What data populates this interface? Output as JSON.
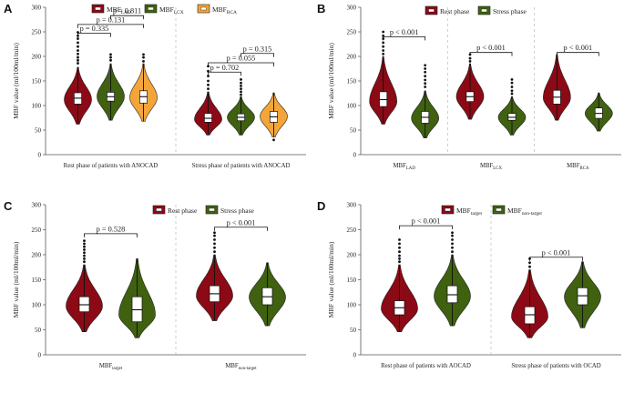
{
  "colors": {
    "red": "#8B0A15",
    "green": "#3F6110",
    "orange": "#F3A53A",
    "divider": "#bbbbbb"
  },
  "chart_data": [
    {
      "panel": "A",
      "type": "violin",
      "ylabel": "MBF value (ml/100ml/min)",
      "ylim": [
        0,
        300
      ],
      "yticks": [
        "0",
        "50",
        "100",
        "150",
        "200",
        "250",
        "300"
      ],
      "legend": [
        {
          "key": "lad",
          "base": "MBF",
          "sub": "LAD",
          "color": "red"
        },
        {
          "key": "lcx",
          "base": "MBF",
          "sub": "LCX",
          "color": "green"
        },
        {
          "key": "rca",
          "base": "MBF",
          "sub": "RCA",
          "color": "orange"
        }
      ],
      "groups": [
        {
          "label": "Rest phase of patients with ANOCAD",
          "violins": [
            {
              "series": "lad",
              "color": "red",
              "min": 62,
              "max": 178,
              "q1": 103,
              "median": 115,
              "q3": 126,
              "peak": 112,
              "outliers": [
                186,
                192,
                198,
                205,
                212,
                220,
                228,
                236,
                242,
                249
              ]
            },
            {
              "series": "lcx",
              "color": "green",
              "min": 70,
              "max": 185,
              "q1": 109,
              "median": 118,
              "q3": 127,
              "peak": 118,
              "outliers": [
                192,
                198,
                204
              ]
            },
            {
              "series": "rca",
              "color": "orange",
              "min": 68,
              "max": 185,
              "q1": 105,
              "median": 118,
              "q3": 130,
              "peak": 116,
              "outliers": [
                190,
                198,
                204
              ]
            }
          ]
        },
        {
          "label": "Stress phase of patients with ANOCAD",
          "violins": [
            {
              "series": "lad",
              "color": "red",
              "min": 40,
              "max": 128,
              "q1": 66,
              "median": 74,
              "q3": 84,
              "peak": 72,
              "outliers": [
                134,
                142,
                150,
                160,
                170,
                180
              ]
            },
            {
              "series": "lcx",
              "color": "green",
              "min": 40,
              "max": 118,
              "q1": 69,
              "median": 76,
              "q3": 83,
              "peak": 76,
              "outliers": [
                122,
                128,
                134,
                140,
                146,
                153
              ]
            },
            {
              "series": "rca",
              "color": "orange",
              "min": 36,
              "max": 126,
              "q1": 66,
              "median": 77,
              "q3": 88,
              "peak": 78,
              "outliers": [
                30
              ]
            }
          ]
        }
      ],
      "brackets": [
        {
          "group": 0,
          "from": 0,
          "to": 1,
          "y": 247,
          "label": "p = 0.335"
        },
        {
          "group": 0,
          "from": 0,
          "to": 2,
          "y": 265,
          "label": "p = 0.131"
        },
        {
          "group": 0,
          "from": 1,
          "to": 2,
          "y": 283,
          "label": "p = 0.811"
        },
        {
          "group": 1,
          "from": 0,
          "to": 1,
          "y": 168,
          "label": "p = 0.702"
        },
        {
          "group": 1,
          "from": 0,
          "to": 2,
          "y": 187,
          "label": "p = 0.055"
        },
        {
          "group": 1,
          "from": 1,
          "to": 2,
          "y": 206,
          "label": "p = 0.315"
        }
      ]
    },
    {
      "panel": "B",
      "type": "violin",
      "ylabel": "MBF value (ml/100ml/min)",
      "ylim": [
        0,
        300
      ],
      "yticks": [
        "0",
        "50",
        "100",
        "150",
        "200",
        "250",
        "300"
      ],
      "legend": [
        {
          "key": "rest",
          "base": "Rest phase",
          "sub": "",
          "color": "red"
        },
        {
          "key": "stress",
          "base": "Stress phase",
          "sub": "",
          "color": "green"
        }
      ],
      "groups": [
        {
          "label": "MBF",
          "label_sub": "LAD",
          "violins": [
            {
              "series": "rest",
              "color": "red",
              "min": 62,
              "max": 200,
              "q1": 98,
              "median": 112,
              "q3": 128,
              "peak": 108,
              "outliers": [
                205,
                212,
                220,
                228,
                236,
                242,
                250
              ]
            },
            {
              "series": "stress",
              "color": "green",
              "min": 34,
              "max": 130,
              "q1": 64,
              "median": 76,
              "q3": 88,
              "peak": 74,
              "outliers": [
                138,
                145,
                152,
                160,
                168,
                175,
                182
              ]
            }
          ]
        },
        {
          "label": "MBF",
          "label_sub": "LCX",
          "violins": [
            {
              "series": "rest",
              "color": "red",
              "min": 72,
              "max": 185,
              "q1": 108,
              "median": 118,
              "q3": 128,
              "peak": 118,
              "outliers": [
                190,
                196,
                204
              ]
            },
            {
              "series": "stress",
              "color": "green",
              "min": 40,
              "max": 118,
              "q1": 70,
              "median": 76,
              "q3": 84,
              "peak": 76,
              "outliers": [
                124,
                130,
                138,
                146,
                153
              ]
            }
          ]
        },
        {
          "label": "MBF",
          "label_sub": "RCA",
          "violins": [
            {
              "series": "rest",
              "color": "red",
              "min": 70,
              "max": 204,
              "q1": 103,
              "median": 117,
              "q3": 131,
              "peak": 116,
              "outliers": []
            },
            {
              "series": "stress",
              "color": "green",
              "min": 48,
              "max": 126,
              "q1": 74,
              "median": 84,
              "q3": 95,
              "peak": 84,
              "outliers": []
            }
          ]
        }
      ],
      "brackets": [
        {
          "group": 0,
          "from": 0,
          "to": 1,
          "y": 240,
          "label": "p < 0.001"
        },
        {
          "group": 1,
          "from": 0,
          "to": 1,
          "y": 208,
          "label": "p < 0.001"
        },
        {
          "group": 2,
          "from": 0,
          "to": 1,
          "y": 208,
          "label": "p < 0.001"
        }
      ]
    },
    {
      "panel": "C",
      "type": "violin",
      "ylabel": "MBF value (ml/100ml/min)",
      "ylim": [
        0,
        300
      ],
      "yticks": [
        "0",
        "50",
        "100",
        "150",
        "200",
        "250",
        "300"
      ],
      "legend": [
        {
          "key": "rest",
          "base": "Rest phase",
          "sub": "",
          "color": "red"
        },
        {
          "key": "stress",
          "base": "Stress phase",
          "sub": "",
          "color": "green"
        }
      ],
      "groups": [
        {
          "label": "MBF",
          "label_sub": "target",
          "violins": [
            {
              "series": "rest",
              "color": "red",
              "min": 46,
              "max": 180,
              "q1": 86,
              "median": 100,
              "q3": 116,
              "peak": 97,
              "outliers": [
                186,
                192,
                198,
                204,
                210,
                216,
                222,
                228
              ]
            },
            {
              "series": "stress",
              "color": "green",
              "min": 34,
              "max": 192,
              "q1": 66,
              "median": 90,
              "q3": 116,
              "peak": 80,
              "outliers": []
            }
          ]
        },
        {
          "label": "MBF",
          "label_sub": "non-target",
          "violins": [
            {
              "series": "rest",
              "color": "red",
              "min": 68,
              "max": 200,
              "q1": 106,
              "median": 122,
              "q3": 138,
              "peak": 118,
              "outliers": [
                206,
                214,
                222,
                230,
                238,
                244
              ]
            },
            {
              "series": "stress",
              "color": "green",
              "min": 58,
              "max": 184,
              "q1": 100,
              "median": 116,
              "q3": 134,
              "peak": 115,
              "outliers": []
            }
          ]
        }
      ],
      "brackets": [
        {
          "group": 0,
          "from": 0,
          "to": 1,
          "y": 242,
          "label": "p = 0.528"
        },
        {
          "group": 1,
          "from": 0,
          "to": 1,
          "y": 255,
          "label": "p < 0.001"
        }
      ]
    },
    {
      "panel": "D",
      "type": "violin",
      "ylabel": "MBF value (ml/100ml/min)",
      "ylim": [
        0,
        300
      ],
      "yticks": [
        "0",
        "50",
        "100",
        "150",
        "200",
        "250",
        "300"
      ],
      "legend": [
        {
          "key": "target",
          "base": "MBF",
          "sub": "target",
          "color": "red"
        },
        {
          "key": "nontarget",
          "base": "MBF",
          "sub": "non-target",
          "color": "green"
        }
      ],
      "groups": [
        {
          "label": "Rest phase of patients with AOCAD",
          "violins": [
            {
              "series": "target",
              "color": "red",
              "min": 46,
              "max": 180,
              "q1": 80,
              "median": 94,
              "q3": 108,
              "peak": 92,
              "outliers": [
                186,
                192,
                198,
                206,
                214,
                222,
                230
              ]
            },
            {
              "series": "nontarget",
              "color": "green",
              "min": 58,
              "max": 200,
              "q1": 104,
              "median": 120,
              "q3": 138,
              "peak": 117,
              "outliers": [
                206,
                214,
                222,
                230,
                238,
                244
              ]
            }
          ]
        },
        {
          "label": "Stress phase of patients with OCAD",
          "violins": [
            {
              "series": "target",
              "color": "red",
              "min": 34,
              "max": 170,
              "q1": 62,
              "median": 80,
              "q3": 96,
              "peak": 76,
              "outliers": [
                176,
                184,
                192
              ]
            },
            {
              "series": "nontarget",
              "color": "green",
              "min": 54,
              "max": 186,
              "q1": 100,
              "median": 118,
              "q3": 134,
              "peak": 116,
              "outliers": []
            }
          ]
        }
      ],
      "brackets": [
        {
          "group": 0,
          "from": 0,
          "to": 1,
          "y": 258,
          "label": "p < 0.001"
        },
        {
          "group": 1,
          "from": 0,
          "to": 1,
          "y": 195,
          "label": "p < 0.001"
        }
      ]
    }
  ]
}
